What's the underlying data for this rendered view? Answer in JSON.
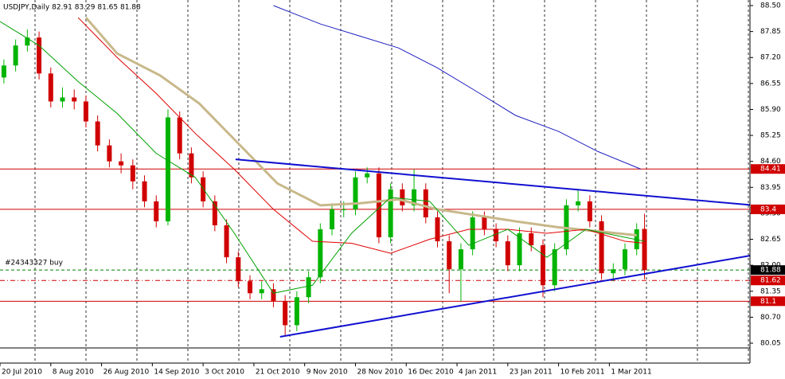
{
  "chart_data": {
    "type": "candlestick",
    "title": "USDJPY,Daily  82.91 83.29 81.65 81.88",
    "annotation": "#24343327 buy",
    "xlim": [
      0,
      192
    ],
    "xticks": [
      {
        "value": 0,
        "label": "20 Jul 2010"
      },
      {
        "value": 13,
        "label": "8 Aug 2010"
      },
      {
        "value": 26,
        "label": "26 Aug 2010"
      },
      {
        "value": 39,
        "label": "14 Sep 2010"
      },
      {
        "value": 52,
        "label": "3 Oct 2010"
      },
      {
        "value": 65,
        "label": "21 Oct 2010"
      },
      {
        "value": 78,
        "label": "9 Nov 2010"
      },
      {
        "value": 91,
        "label": "28 Nov 2010"
      },
      {
        "value": 104,
        "label": "16 Dec 2010"
      },
      {
        "value": 117,
        "label": "4 Jan 2011"
      },
      {
        "value": 130,
        "label": "23 Jan 2011"
      },
      {
        "value": 143,
        "label": "10 Feb 2011"
      },
      {
        "value": 156,
        "label": "1 Mar 2011"
      }
    ],
    "ylim": [
      80.05,
      88.5
    ],
    "yticks": [
      {
        "value": 80.05,
        "label": "80.05"
      },
      {
        "value": 80.7,
        "label": "80.70"
      },
      {
        "value": 81.35,
        "label": "81.35"
      },
      {
        "value": 82.0,
        "label": "82.00"
      },
      {
        "value": 82.65,
        "label": "82.65"
      },
      {
        "value": 83.3,
        "label": "83.30"
      },
      {
        "value": 83.95,
        "label": "83.95"
      },
      {
        "value": 84.6,
        "label": "84.60"
      },
      {
        "value": 85.25,
        "label": "85.25"
      },
      {
        "value": 85.9,
        "label": "85.90"
      },
      {
        "value": 86.55,
        "label": "86.55"
      },
      {
        "value": 87.2,
        "label": "87.20"
      },
      {
        "value": 87.85,
        "label": "87.85"
      },
      {
        "value": 88.5,
        "label": "88.50"
      }
    ],
    "up_color": "#00b400",
    "down_color": "#d00000",
    "x": [
      1,
      4,
      7,
      10,
      13,
      16,
      19,
      22,
      25,
      28,
      31,
      34,
      37,
      40,
      43,
      46,
      49,
      52,
      55,
      58,
      61,
      64,
      67,
      70,
      73,
      76,
      79,
      82,
      85,
      88,
      91,
      94,
      97,
      100,
      103,
      106,
      109,
      112,
      115,
      118,
      121,
      124,
      127,
      130,
      133,
      136,
      139,
      142,
      145,
      148,
      151,
      154,
      157,
      160,
      163,
      165
    ],
    "open": [
      86.7,
      87.0,
      87.5,
      87.7,
      86.8,
      86.1,
      86.2,
      86.1,
      85.6,
      85.0,
      84.6,
      84.5,
      84.1,
      83.6,
      83.1,
      85.7,
      84.8,
      84.2,
      83.6,
      83.0,
      82.2,
      81.6,
      81.3,
      81.4,
      81.1,
      80.5,
      81.2,
      81.7,
      82.9,
      83.4,
      83.4,
      84.2,
      84.3,
      82.7,
      83.9,
      83.5,
      83.9,
      83.2,
      82.6,
      81.9,
      82.4,
      83.2,
      82.9,
      82.6,
      82.0,
      82.8,
      82.5,
      81.5,
      82.4,
      83.5,
      83.6,
      83.1,
      81.8,
      81.9,
      82.4,
      82.91
    ],
    "high": [
      87.15,
      87.65,
      87.9,
      87.85,
      86.95,
      86.45,
      86.4,
      86.25,
      85.75,
      85.15,
      84.8,
      84.65,
      84.25,
      83.75,
      85.9,
      85.85,
      84.95,
      84.35,
      83.75,
      83.15,
      82.35,
      81.75,
      81.6,
      81.55,
      81.25,
      81.35,
      81.85,
      83.05,
      83.55,
      83.6,
      84.35,
      84.45,
      84.45,
      84.05,
      84.05,
      84.4,
      84.05,
      83.35,
      82.75,
      82.55,
      83.35,
      83.35,
      83.05,
      82.75,
      82.95,
      82.95,
      82.65,
      82.55,
      83.65,
      83.9,
      83.75,
      83.25,
      82.05,
      82.55,
      83.05,
      83.29
    ],
    "low": [
      86.55,
      86.85,
      87.35,
      86.65,
      85.95,
      85.95,
      85.9,
      85.45,
      84.85,
      84.45,
      84.3,
      83.9,
      83.45,
      82.95,
      83.0,
      84.65,
      84.05,
      83.45,
      82.85,
      82.05,
      81.45,
      81.15,
      81.15,
      80.95,
      80.25,
      80.35,
      81.05,
      81.55,
      82.75,
      83.2,
      83.25,
      84.05,
      82.55,
      82.55,
      83.35,
      83.35,
      83.05,
      82.45,
      81.3,
      81.1,
      82.25,
      82.75,
      82.45,
      81.85,
      81.85,
      82.35,
      81.2,
      81.35,
      82.25,
      83.35,
      82.95,
      81.65,
      81.6,
      81.75,
      82.25,
      81.65
    ],
    "close": [
      87.0,
      87.5,
      87.7,
      86.8,
      86.1,
      86.2,
      86.1,
      85.6,
      85.0,
      84.6,
      84.5,
      84.1,
      83.6,
      83.1,
      85.7,
      84.8,
      84.2,
      83.6,
      83.0,
      82.2,
      81.6,
      81.3,
      81.4,
      81.1,
      80.5,
      81.2,
      81.7,
      82.9,
      83.4,
      83.4,
      84.2,
      84.3,
      82.7,
      83.9,
      83.5,
      83.9,
      83.2,
      82.6,
      81.9,
      82.4,
      83.2,
      82.9,
      82.6,
      82.0,
      82.8,
      82.5,
      81.5,
      82.4,
      83.5,
      83.6,
      83.1,
      81.8,
      81.9,
      82.4,
      82.9,
      81.88
    ],
    "series": [
      {
        "color": "#2020c0",
        "width": 1,
        "x": [
          70,
          82,
          92,
          102,
          112,
          122,
          132,
          143,
          153,
          164
        ],
        "values": [
          88.5,
          88.04,
          87.74,
          87.44,
          86.94,
          86.35,
          85.75,
          85.35,
          84.85,
          84.41
        ]
      },
      {
        "color": "#c8b88a",
        "width": 3,
        "x": [
          22,
          30,
          41,
          51,
          61,
          71,
          82,
          92,
          102,
          112,
          122,
          132,
          143,
          153,
          163
        ],
        "values": [
          88.2,
          87.3,
          86.75,
          86.05,
          85.05,
          84.05,
          83.5,
          83.55,
          83.65,
          83.4,
          83.25,
          83.1,
          82.95,
          82.85,
          82.75
        ]
      },
      {
        "color": "#e00000",
        "width": 1,
        "x": [
          20,
          30,
          40,
          50,
          60,
          70,
          80,
          90,
          100,
          110,
          120,
          130,
          140,
          150,
          160,
          165
        ],
        "values": [
          88.2,
          87.2,
          86.3,
          85.3,
          84.4,
          83.4,
          82.6,
          82.55,
          82.3,
          82.65,
          82.9,
          82.9,
          82.8,
          82.9,
          82.6,
          82.55
        ]
      },
      {
        "color": "#00a000",
        "width": 1,
        "x": [
          0,
          10,
          20,
          30,
          40,
          50,
          60,
          70,
          80,
          90,
          100,
          110,
          120,
          130,
          140,
          150,
          160,
          165
        ],
        "values": [
          88.1,
          87.5,
          86.6,
          85.8,
          84.8,
          84.2,
          82.8,
          81.3,
          81.5,
          82.8,
          83.7,
          83.6,
          82.5,
          82.9,
          82.2,
          82.9,
          82.7,
          82.6
        ]
      }
    ],
    "trendlines": [
      {
        "color": "#1010d0",
        "x": [
          60.3,
          192
        ],
        "values": [
          84.65,
          83.51
        ]
      },
      {
        "color": "#1010d0",
        "x": [
          71.7,
          192
        ],
        "values": [
          80.21,
          82.24
        ]
      }
    ],
    "levels": [
      {
        "value": 84.41,
        "color": "#d00000",
        "style": "solid"
      },
      {
        "value": 83.4,
        "color": "#d00000",
        "style": "solid"
      },
      {
        "value": 81.88,
        "color": "#008000",
        "style": "dash",
        "label_color": "#000000"
      },
      {
        "value": 81.62,
        "color": "#d00000",
        "style": "dashdot"
      },
      {
        "value": 81.1,
        "color": "#d00000",
        "style": "solid"
      }
    ]
  }
}
